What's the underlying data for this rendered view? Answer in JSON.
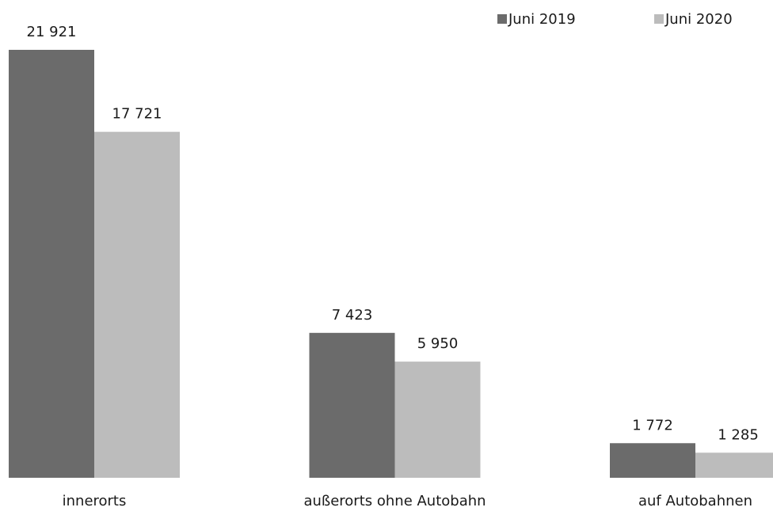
{
  "chart_data": {
    "type": "bar",
    "categories": [
      "innerorts",
      "außerorts ohne Autobahn",
      "auf Autobahnen"
    ],
    "series": [
      {
        "name": "Juni 2019",
        "color": "#6b6b6b",
        "values": [
          21921,
          7423,
          1772
        ],
        "value_labels": [
          "21 921",
          "7 423",
          "1 772"
        ]
      },
      {
        "name": "Juni 2020",
        "color": "#bcbcbc",
        "values": [
          17721,
          5950,
          1285
        ],
        "value_labels": [
          "17 721",
          "5 950",
          "1 285"
        ]
      }
    ],
    "legend": "top-right"
  }
}
